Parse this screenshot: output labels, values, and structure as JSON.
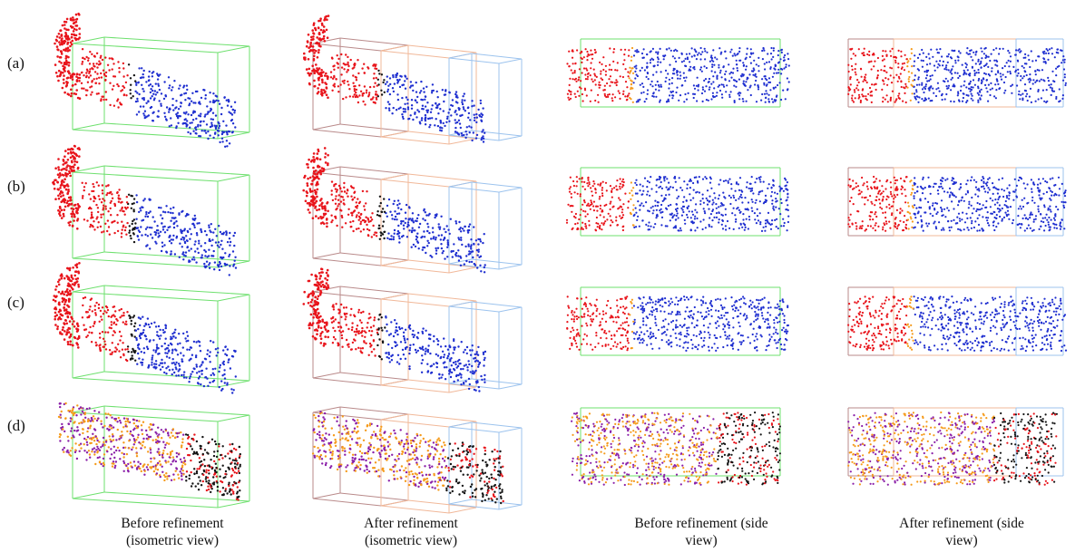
{
  "figure": {
    "row_labels": [
      "(a)",
      "(b)",
      "(c)",
      "(d)"
    ],
    "captions": [
      {
        "line1": "Before refinement",
        "line2": "(isometric view)"
      },
      {
        "line1": "After refinement",
        "line2": "(isometric view)"
      },
      {
        "line1": "Before refinement (side",
        "line2": "view)"
      },
      {
        "line1": "After refinement (side",
        "line2": "view)"
      }
    ],
    "colors": {
      "red": "#e8141b",
      "blue": "#1f2fd0",
      "orange": "#f59a1a",
      "purple": "#8a1fa8",
      "black": "#151515",
      "green_box": "#6ee06e",
      "blue_box": "#9cc3ee",
      "brown_box": "#b98a8a",
      "peach_box": "#f1b899"
    }
  }
}
